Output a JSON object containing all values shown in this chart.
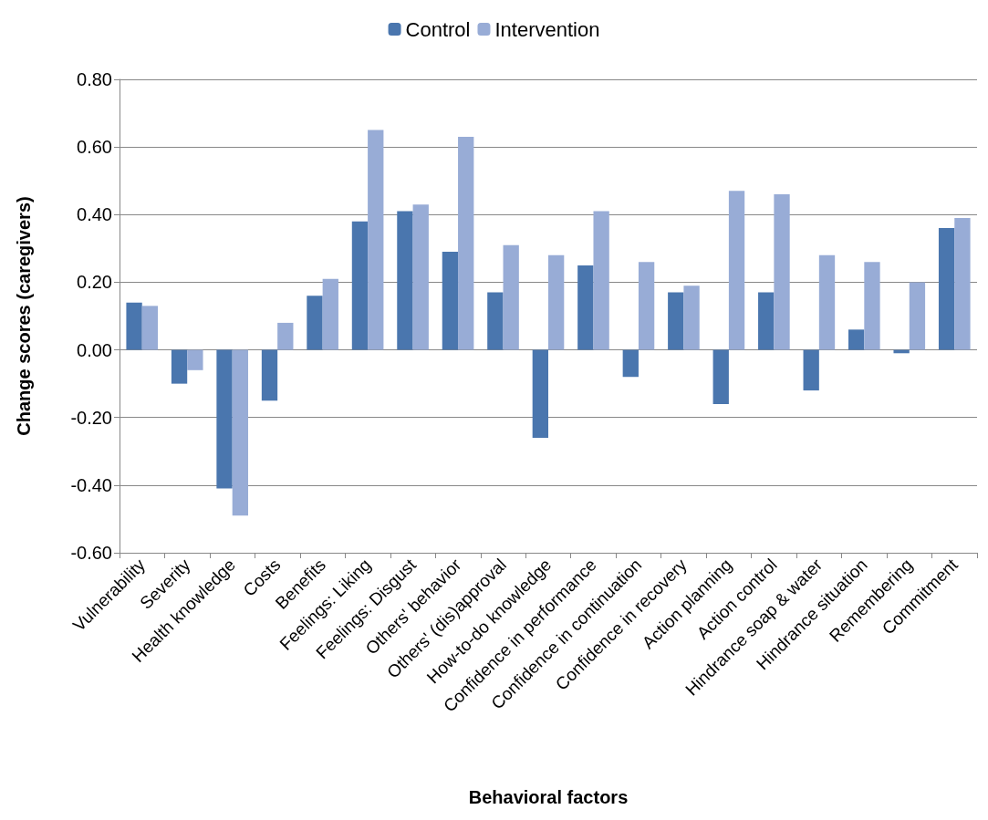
{
  "chart_data": {
    "type": "bar",
    "xlabel": "Behavioral factors",
    "ylabel": "Change scores (caregivers)",
    "categories": [
      "Vulnerability",
      "Severity",
      "Health knowledge",
      "Costs",
      "Benefits",
      "Feelings: Liking",
      "Feelings: Disgust",
      "Others' behavior",
      "Others' (dis)approval",
      "How-to-do knowledge",
      "Confidence in performance",
      "Confidence in continuation",
      "Confidence in recovery",
      "Action planning",
      "Action control",
      "Hindrance soap & water",
      "Hindrance situation",
      "Remembering",
      "Commitment"
    ],
    "series": [
      {
        "name": "Control",
        "color": "#4a76ae",
        "values": [
          0.14,
          -0.1,
          -0.41,
          -0.15,
          0.16,
          0.38,
          0.41,
          0.29,
          0.17,
          -0.26,
          0.25,
          -0.08,
          0.17,
          -0.16,
          0.17,
          -0.12,
          0.06,
          -0.01,
          0.36
        ]
      },
      {
        "name": "Intervention",
        "color": "#98acd6",
        "values": [
          0.13,
          -0.06,
          -0.49,
          0.08,
          0.21,
          0.65,
          0.43,
          0.63,
          0.31,
          0.28,
          0.41,
          0.26,
          0.19,
          0.47,
          0.46,
          0.28,
          0.26,
          0.2,
          0.39
        ]
      }
    ],
    "ylim": [
      -0.6,
      0.8
    ],
    "yticks": [
      {
        "value": -0.6,
        "label": "-0.60"
      },
      {
        "value": -0.4,
        "label": "-0.40"
      },
      {
        "value": -0.2,
        "label": "-0.20"
      },
      {
        "value": 0,
        "label": "0.00"
      },
      {
        "value": 0.2,
        "label": "0.20"
      },
      {
        "value": 0.4,
        "label": "0.40"
      },
      {
        "value": 0.6,
        "label": "0.60"
      },
      {
        "value": 0.8,
        "label": "0.80"
      }
    ],
    "grid": "y",
    "legend": "top"
  }
}
